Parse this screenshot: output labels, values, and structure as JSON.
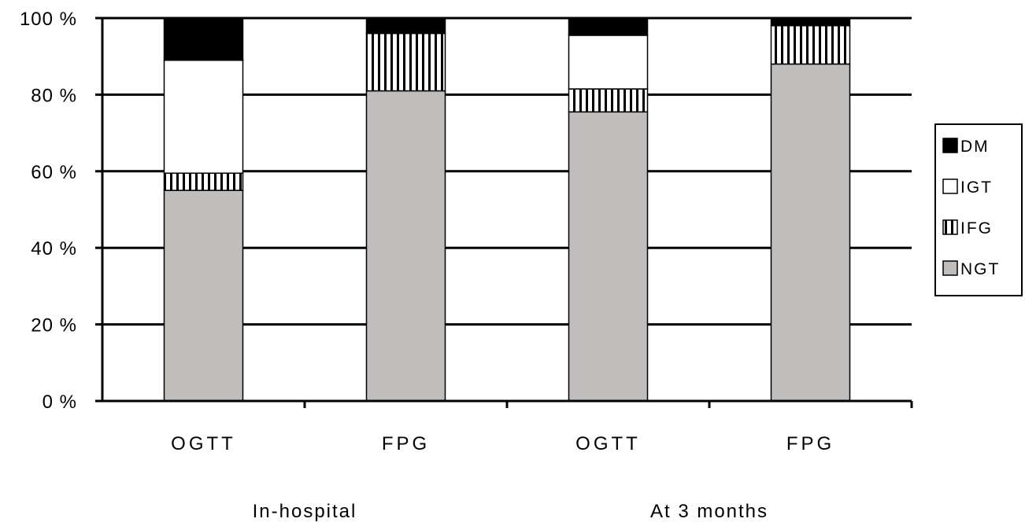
{
  "chart_data": {
    "type": "bar",
    "stacked": true,
    "title": "",
    "xlabel": "",
    "ylabel": "",
    "ylim": [
      0,
      100
    ],
    "y_ticks": [
      "0 %",
      "20 %",
      "40 %",
      "60 %",
      "80 %",
      "100 %"
    ],
    "grid": true,
    "legend_position": "right",
    "categories": [
      "OGTT",
      "FPG",
      "OGTT",
      "FPG"
    ],
    "groups": [
      {
        "label": "In-hospital",
        "categories": [
          0,
          1
        ]
      },
      {
        "label": "At 3 months",
        "categories": [
          2,
          3
        ]
      }
    ],
    "series": [
      {
        "name": "NGT",
        "values": [
          55,
          81,
          75.5,
          88
        ],
        "fill": "gray",
        "color": "#c0bdbd"
      },
      {
        "name": "IFG",
        "values": [
          4.5,
          15,
          6,
          10
        ],
        "fill": "vertical-stripes",
        "color": "#000000"
      },
      {
        "name": "IGT",
        "values": [
          29.5,
          0,
          14,
          0
        ],
        "fill": "white",
        "color": "#ffffff"
      },
      {
        "name": "DM",
        "values": [
          11,
          4,
          4.5,
          2
        ],
        "fill": "black",
        "color": "#000000"
      }
    ],
    "legend_order": [
      "DM",
      "IGT",
      "IFG",
      "NGT"
    ]
  }
}
